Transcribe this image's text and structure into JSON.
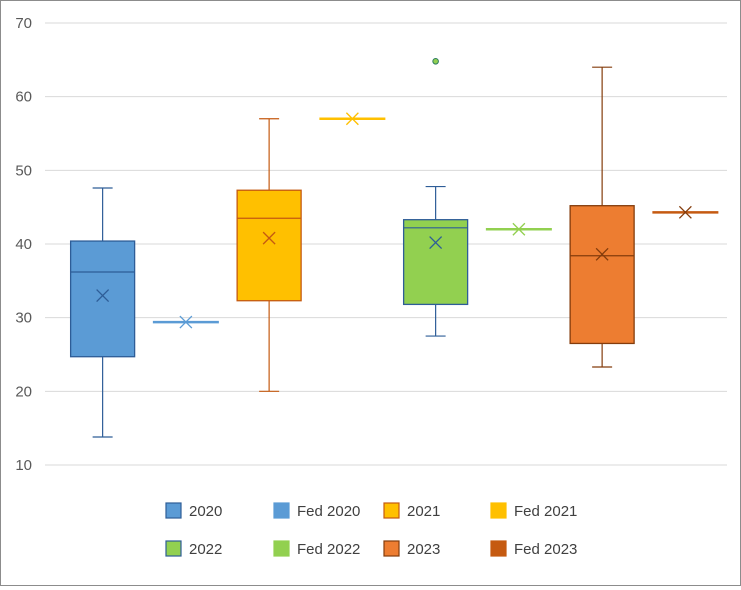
{
  "chart_data": {
    "type": "box",
    "title": "",
    "xlabel": "",
    "ylabel": "",
    "ylim": [
      10,
      70
    ],
    "yticks": [
      10,
      20,
      30,
      40,
      50,
      60,
      70
    ],
    "grid": true,
    "legend_position": "bottom",
    "series": [
      {
        "name": "2020",
        "kind": "box",
        "color": "#5b9bd5",
        "edge": "#2e5d97",
        "min": 13.8,
        "q1": 24.7,
        "median": 36.2,
        "q3": 40.4,
        "max": 47.6,
        "mean": 33.0,
        "outliers": []
      },
      {
        "name": "Fed 2020",
        "kind": "single",
        "color": "#5b9bd5",
        "edge": "#5b9bd5",
        "value": 29.4
      },
      {
        "name": "2021",
        "kind": "box",
        "color": "#ffc000",
        "edge": "#c55a11",
        "min": 20.0,
        "q1": 32.3,
        "median": 43.5,
        "q3": 47.3,
        "max": 57.0,
        "mean": 40.8,
        "outliers": []
      },
      {
        "name": "Fed 2021",
        "kind": "single",
        "color": "#ffc000",
        "edge": "#ffc000",
        "value": 57.0
      },
      {
        "name": "2022",
        "kind": "box",
        "color": "#92d050",
        "edge": "#2e5d97",
        "min": 27.5,
        "q1": 31.8,
        "median": 42.2,
        "q3": 43.3,
        "max": 47.8,
        "mean": 40.2,
        "outliers": [
          64.8
        ]
      },
      {
        "name": "Fed 2022",
        "kind": "single",
        "color": "#92d050",
        "edge": "#92d050",
        "value": 42.0
      },
      {
        "name": "2023",
        "kind": "box",
        "color": "#ed7d31",
        "edge": "#843c0c",
        "min": 23.3,
        "q1": 26.5,
        "median": 38.4,
        "q3": 45.2,
        "max": 64.0,
        "mean": 38.6,
        "outliers": []
      },
      {
        "name": "Fed 2023",
        "kind": "single",
        "color": "#c55a11",
        "edge": "#843c0c",
        "value": 44.3
      }
    ]
  }
}
